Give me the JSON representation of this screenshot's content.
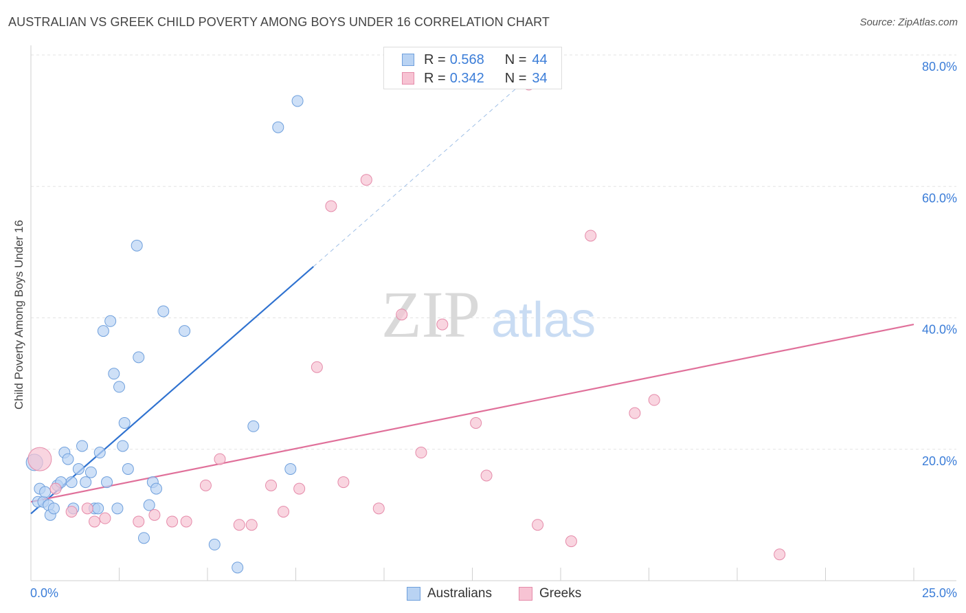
{
  "header": {
    "title": "AUSTRALIAN VS GREEK CHILD POVERTY AMONG BOYS UNDER 16 CORRELATION CHART",
    "source": "Source: ZipAtlas.com"
  },
  "watermark": {
    "zip": "ZIP",
    "atlas": "atlas"
  },
  "legend": {
    "r_label": "R =",
    "n_label": "N =",
    "rows": [
      {
        "r": "0.568",
        "n": "44"
      },
      {
        "r": "0.342",
        "n": "34"
      }
    ]
  },
  "bottom_legend": {
    "australians": "Australians",
    "greeks": "Greeks"
  },
  "axes": {
    "x_min_label": "0.0%",
    "x_max_label": "25.0%",
    "y_ticks": [
      "20.0%",
      "40.0%",
      "60.0%",
      "80.0%"
    ]
  },
  "colors": {
    "blue_fill": "#b9d3f3",
    "blue_stroke": "#6e9fdc",
    "blue_line": "#2f72d0",
    "pink_fill": "#f7c3d3",
    "pink_stroke": "#e58aa9",
    "pink_line": "#e0709a",
    "tick_label": "#3b7dd8",
    "grid": "#e3e3e3"
  },
  "chart_data": {
    "type": "scatter",
    "title": "AUSTRALIAN VS GREEK CHILD POVERTY AMONG BOYS UNDER 16 CORRELATION CHART",
    "xlabel": "",
    "ylabel": "Child Poverty Among Boys Under 16",
    "xlim": [
      0,
      25
    ],
    "ylim": [
      0,
      80
    ],
    "grid": true,
    "series": [
      {
        "name": "Australians",
        "points": [
          [
            0.1,
            18.0
          ],
          [
            0.2,
            12.0
          ],
          [
            0.25,
            14.0
          ],
          [
            0.35,
            12.0
          ],
          [
            0.4,
            13.5
          ],
          [
            0.5,
            11.5
          ],
          [
            0.55,
            10.0
          ],
          [
            0.65,
            11.0
          ],
          [
            0.75,
            14.5
          ],
          [
            0.85,
            15.0
          ],
          [
            0.95,
            19.5
          ],
          [
            1.05,
            18.5
          ],
          [
            1.15,
            15.0
          ],
          [
            1.2,
            11.0
          ],
          [
            1.35,
            17.0
          ],
          [
            1.45,
            20.5
          ],
          [
            1.55,
            15.0
          ],
          [
            1.7,
            16.5
          ],
          [
            1.8,
            11.0
          ],
          [
            1.9,
            11.0
          ],
          [
            1.95,
            19.5
          ],
          [
            2.05,
            38.0
          ],
          [
            2.15,
            15.0
          ],
          [
            2.25,
            39.5
          ],
          [
            2.35,
            31.5
          ],
          [
            2.45,
            11.0
          ],
          [
            2.5,
            29.5
          ],
          [
            2.6,
            20.5
          ],
          [
            2.65,
            24.0
          ],
          [
            2.75,
            17.0
          ],
          [
            3.0,
            51.0
          ],
          [
            3.05,
            34.0
          ],
          [
            3.2,
            6.5
          ],
          [
            3.35,
            11.5
          ],
          [
            3.45,
            15.0
          ],
          [
            3.55,
            14.0
          ],
          [
            3.75,
            41.0
          ],
          [
            4.35,
            38.0
          ],
          [
            5.85,
            2.0
          ],
          [
            5.2,
            5.5
          ],
          [
            6.3,
            23.5
          ],
          [
            7.0,
            69.0
          ],
          [
            7.35,
            17.0
          ],
          [
            7.55,
            73.0
          ]
        ]
      },
      {
        "name": "Greeks",
        "points": [
          [
            0.25,
            18.5
          ],
          [
            0.7,
            14.0
          ],
          [
            1.15,
            10.5
          ],
          [
            1.6,
            11.0
          ],
          [
            1.8,
            9.0
          ],
          [
            2.1,
            9.5
          ],
          [
            3.05,
            9.0
          ],
          [
            3.5,
            10.0
          ],
          [
            4.0,
            9.0
          ],
          [
            4.4,
            9.0
          ],
          [
            4.95,
            14.5
          ],
          [
            5.35,
            18.5
          ],
          [
            5.9,
            8.5
          ],
          [
            6.25,
            8.5
          ],
          [
            6.8,
            14.5
          ],
          [
            7.15,
            10.5
          ],
          [
            7.6,
            14.0
          ],
          [
            8.1,
            32.5
          ],
          [
            8.5,
            57.0
          ],
          [
            8.85,
            15.0
          ],
          [
            9.5,
            61.0
          ],
          [
            9.85,
            11.0
          ],
          [
            10.5,
            40.5
          ],
          [
            11.05,
            19.5
          ],
          [
            11.65,
            39.0
          ],
          [
            12.6,
            24.0
          ],
          [
            12.9,
            16.0
          ],
          [
            14.1,
            75.5
          ],
          [
            14.35,
            8.5
          ],
          [
            15.3,
            6.0
          ],
          [
            15.85,
            52.5
          ],
          [
            17.1,
            25.5
          ],
          [
            17.65,
            27.5
          ],
          [
            21.2,
            4.0
          ]
        ]
      }
    ],
    "trendlines": [
      {
        "series": "Australians",
        "x": [
          0,
          8
        ],
        "y": [
          10.2,
          47.8
        ],
        "dashed_to": [
          14.5,
          78.5
        ]
      },
      {
        "series": "Greeks",
        "x": [
          0,
          25
        ],
        "y": [
          12.0,
          39.0
        ]
      }
    ],
    "stats": [
      {
        "series": "Australians",
        "R": 0.568,
        "N": 44
      },
      {
        "series": "Greeks",
        "R": 0.342,
        "N": 34
      }
    ]
  }
}
